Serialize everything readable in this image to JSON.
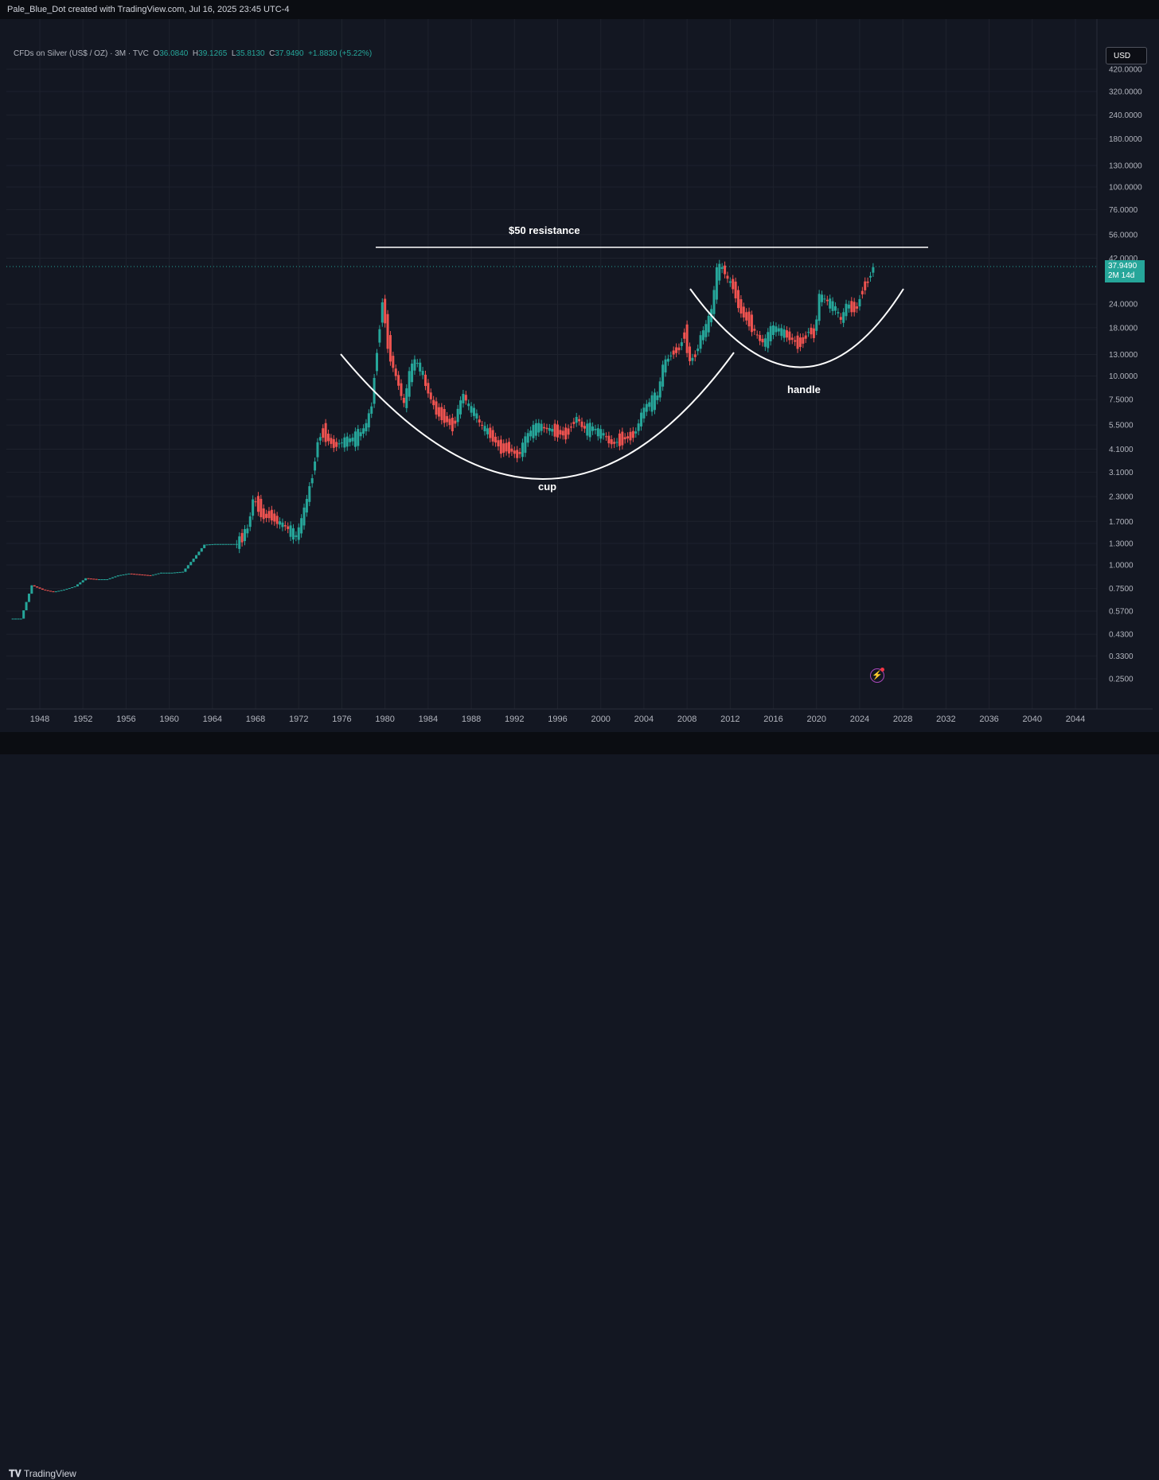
{
  "header": {
    "watermark": "Pale_Blue_Dot created with TradingView.com, Jul 16, 2025 23:45 UTC-4"
  },
  "legend": {
    "symbol": "CFDs on Silver (US$ / OZ) · 3M · TVC",
    "open_label": "O",
    "open_value": "36.0840",
    "high_label": "H",
    "high_value": "39.1265",
    "low_label": "L",
    "low_value": "35.8130",
    "close_label": "C",
    "close_value": "37.9490",
    "change": "+1.8830 (+5.22%)"
  },
  "currency_button": "USD",
  "price_tag": {
    "price": "37.9490",
    "countdown": "2M 14d"
  },
  "footer": {
    "logo_text": "TradingView",
    "logo_icon": "tradingview-logo-icon"
  },
  "icons": {
    "lightning": "lightning-icon"
  },
  "colors": {
    "up": "#26a69a",
    "down": "#ef5350",
    "background": "#131722",
    "annotation": "#ffffff"
  },
  "chart_data": {
    "type": "candlestick",
    "symbol": "CFDs on Silver (US$ / OZ)",
    "interval": "3M",
    "y_scale": "log",
    "ylim": [
      0.22,
      520
    ],
    "xlim": [
      1945.3,
      2047.3
    ],
    "y_ticks": [
      "420.0000",
      "320.0000",
      "240.0000",
      "180.0000",
      "130.0000",
      "100.0000",
      "76.0000",
      "56.0000",
      "42.0000",
      "24.0000",
      "18.0000",
      "13.0000",
      "10.0000",
      "7.5000",
      "5.5000",
      "4.1000",
      "3.1000",
      "2.3000",
      "1.7000",
      "1.3000",
      "1.0000",
      "0.7500",
      "0.5700",
      "0.4300",
      "0.3300",
      "0.2500"
    ],
    "x_ticks": [
      "1948",
      "1952",
      "1956",
      "1960",
      "1964",
      "1968",
      "1972",
      "1976",
      "1980",
      "1984",
      "1988",
      "1992",
      "1996",
      "2000",
      "2004",
      "2008",
      "2012",
      "2016",
      "2020",
      "2024",
      "2028",
      "2032",
      "2036",
      "2040",
      "2044"
    ],
    "grid": true,
    "last_price": 37.949,
    "price_points": [
      [
        1945.5,
        0.52
      ],
      [
        1946.5,
        0.52
      ],
      [
        1947.5,
        0.78
      ],
      [
        1948.5,
        0.74
      ],
      [
        1949.5,
        0.72
      ],
      [
        1950.5,
        0.74
      ],
      [
        1951.5,
        0.77
      ],
      [
        1952.5,
        0.85
      ],
      [
        1953.5,
        0.84
      ],
      [
        1954.5,
        0.84
      ],
      [
        1955.5,
        0.88
      ],
      [
        1956.5,
        0.9
      ],
      [
        1957.5,
        0.89
      ],
      [
        1958.5,
        0.88
      ],
      [
        1959.5,
        0.91
      ],
      [
        1960.5,
        0.91
      ],
      [
        1961.5,
        0.92
      ],
      [
        1962.5,
        1.08
      ],
      [
        1963.5,
        1.28
      ],
      [
        1964.5,
        1.29
      ],
      [
        1965.5,
        1.29
      ],
      [
        1966.5,
        1.29
      ],
      [
        1967.5,
        1.55
      ],
      [
        1968.0,
        2.2
      ],
      [
        1968.5,
        2.05
      ],
      [
        1969.0,
        1.8
      ],
      [
        1969.5,
        1.85
      ],
      [
        1970.0,
        1.75
      ],
      [
        1970.5,
        1.65
      ],
      [
        1971.0,
        1.6
      ],
      [
        1971.5,
        1.5
      ],
      [
        1972.0,
        1.4
      ],
      [
        1972.5,
        1.7
      ],
      [
        1973.0,
        2.2
      ],
      [
        1973.5,
        3.0
      ],
      [
        1974.0,
        4.5
      ],
      [
        1974.5,
        5.1
      ],
      [
        1975.0,
        4.6
      ],
      [
        1975.5,
        4.3
      ],
      [
        1976.0,
        4.4
      ],
      [
        1976.5,
        4.5
      ],
      [
        1977.0,
        4.6
      ],
      [
        1977.5,
        4.7
      ],
      [
        1978.0,
        5.0
      ],
      [
        1978.5,
        5.5
      ],
      [
        1979.0,
        7.0
      ],
      [
        1979.5,
        14.0
      ],
      [
        1980.0,
        25.0
      ],
      [
        1980.5,
        15.0
      ],
      [
        1981.0,
        11.0
      ],
      [
        1981.5,
        9.0
      ],
      [
        1982.0,
        7.0
      ],
      [
        1982.5,
        10.0
      ],
      [
        1983.0,
        12.0
      ],
      [
        1983.5,
        11.0
      ],
      [
        1984.0,
        9.0
      ],
      [
        1984.5,
        7.5
      ],
      [
        1985.0,
        6.5
      ],
      [
        1985.5,
        6.2
      ],
      [
        1986.0,
        5.8
      ],
      [
        1986.5,
        5.4
      ],
      [
        1987.0,
        6.5
      ],
      [
        1987.5,
        8.0
      ],
      [
        1988.0,
        6.8
      ],
      [
        1988.5,
        6.4
      ],
      [
        1989.0,
        5.6
      ],
      [
        1989.5,
        5.2
      ],
      [
        1990.0,
        4.9
      ],
      [
        1990.5,
        4.5
      ],
      [
        1991.0,
        4.1
      ],
      [
        1991.5,
        4.2
      ],
      [
        1992.0,
        4.0
      ],
      [
        1992.5,
        3.8
      ],
      [
        1993.0,
        4.2
      ],
      [
        1993.5,
        4.9
      ],
      [
        1994.0,
        5.2
      ],
      [
        1994.5,
        5.4
      ],
      [
        1995.0,
        5.3
      ],
      [
        1995.5,
        5.2
      ],
      [
        1996.0,
        5.1
      ],
      [
        1996.5,
        5.0
      ],
      [
        1997.0,
        4.9
      ],
      [
        1997.5,
        5.5
      ],
      [
        1998.0,
        6.0
      ],
      [
        1998.5,
        5.4
      ],
      [
        1999.0,
        5.2
      ],
      [
        1999.5,
        5.3
      ],
      [
        2000.0,
        5.0
      ],
      [
        2000.5,
        4.9
      ],
      [
        2001.0,
        4.5
      ],
      [
        2001.5,
        4.4
      ],
      [
        2002.0,
        4.6
      ],
      [
        2002.5,
        4.7
      ],
      [
        2003.0,
        4.8
      ],
      [
        2003.5,
        5.1
      ],
      [
        2004.0,
        6.2
      ],
      [
        2004.5,
        7.0
      ],
      [
        2005.0,
        7.3
      ],
      [
        2005.5,
        7.8
      ],
      [
        2006.0,
        11.0
      ],
      [
        2006.5,
        12.5
      ],
      [
        2007.0,
        13.5
      ],
      [
        2007.5,
        14.0
      ],
      [
        2008.0,
        17.0
      ],
      [
        2008.5,
        12.0
      ],
      [
        2009.0,
        13.0
      ],
      [
        2009.5,
        16.0
      ],
      [
        2010.0,
        18.0
      ],
      [
        2010.5,
        22.0
      ],
      [
        2011.0,
        35.0
      ],
      [
        2011.5,
        38.0
      ],
      [
        2012.0,
        32.0
      ],
      [
        2012.5,
        30.0
      ],
      [
        2013.0,
        24.0
      ],
      [
        2013.5,
        21.0
      ],
      [
        2014.0,
        19.5
      ],
      [
        2014.5,
        17.0
      ],
      [
        2015.0,
        15.5
      ],
      [
        2015.5,
        15.0
      ],
      [
        2016.0,
        17.5
      ],
      [
        2016.5,
        17.8
      ],
      [
        2017.0,
        17.0
      ],
      [
        2017.5,
        16.5
      ],
      [
        2018.0,
        15.5
      ],
      [
        2018.5,
        14.8
      ],
      [
        2019.0,
        15.5
      ],
      [
        2019.5,
        17.5
      ],
      [
        2020.0,
        16.5
      ],
      [
        2020.5,
        26.0
      ],
      [
        2021.0,
        25.5
      ],
      [
        2021.5,
        24.0
      ],
      [
        2022.0,
        22.5
      ],
      [
        2022.5,
        19.5
      ],
      [
        2023.0,
        23.5
      ],
      [
        2023.5,
        23.0
      ],
      [
        2024.0,
        23.0
      ],
      [
        2024.5,
        29.0
      ],
      [
        2025.0,
        32.0
      ],
      [
        2025.5,
        37.95
      ]
    ],
    "annotations": {
      "resistance_label": "$50 resistance",
      "cup_label": "cup",
      "handle_label": "handle",
      "resistance_level": 48.0
    }
  }
}
